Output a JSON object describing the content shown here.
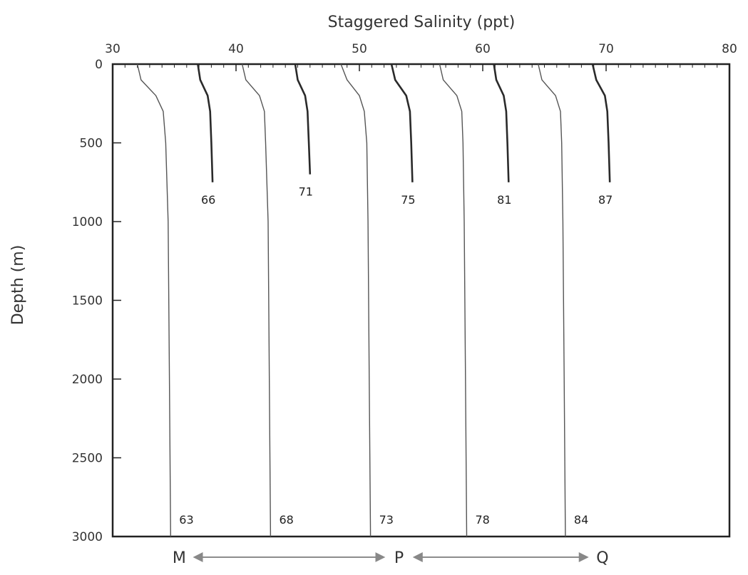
{
  "chart_data": {
    "type": "line",
    "title": "",
    "xlabel": "Staggered Salinity (ppt)",
    "ylabel": "Depth (m)",
    "xlim": [
      30,
      80
    ],
    "ylim": [
      0,
      3000
    ],
    "x_axis_position": "top",
    "y_inverted": true,
    "grid": false,
    "x_ticks": [
      30,
      40,
      50,
      60,
      70,
      80
    ],
    "y_ticks": [
      0,
      500,
      1000,
      1500,
      2000,
      2500,
      3000
    ],
    "colors": {
      "line": "#444444",
      "frame": "#222222",
      "arrow": "#888888"
    },
    "series": [
      {
        "name": "63",
        "style": "thin",
        "points": [
          [
            32.0,
            0
          ],
          [
            32.3,
            100
          ],
          [
            33.5,
            200
          ],
          [
            34.1,
            300
          ],
          [
            34.3,
            500
          ],
          [
            34.5,
            1000
          ],
          [
            34.6,
            2000
          ],
          [
            34.7,
            3000
          ]
        ]
      },
      {
        "name": "68",
        "style": "thin",
        "points": [
          [
            40.5,
            0
          ],
          [
            40.8,
            100
          ],
          [
            41.9,
            200
          ],
          [
            42.3,
            300
          ],
          [
            42.4,
            500
          ],
          [
            42.6,
            1000
          ],
          [
            42.7,
            2000
          ],
          [
            42.8,
            3000
          ]
        ]
      },
      {
        "name": "73",
        "style": "thin",
        "points": [
          [
            48.5,
            0
          ],
          [
            49.0,
            100
          ],
          [
            50.0,
            200
          ],
          [
            50.4,
            300
          ],
          [
            50.6,
            500
          ],
          [
            50.7,
            1000
          ],
          [
            50.8,
            2000
          ],
          [
            50.9,
            3000
          ]
        ]
      },
      {
        "name": "78",
        "style": "thin",
        "points": [
          [
            56.5,
            0
          ],
          [
            56.8,
            100
          ],
          [
            57.9,
            200
          ],
          [
            58.3,
            300
          ],
          [
            58.4,
            500
          ],
          [
            58.5,
            1000
          ],
          [
            58.6,
            2000
          ],
          [
            58.7,
            3000
          ]
        ]
      },
      {
        "name": "84",
        "style": "thin",
        "points": [
          [
            64.5,
            0
          ],
          [
            64.8,
            100
          ],
          [
            65.9,
            200
          ],
          [
            66.3,
            300
          ],
          [
            66.4,
            500
          ],
          [
            66.5,
            1000
          ],
          [
            66.6,
            2000
          ],
          [
            66.7,
            3000
          ]
        ]
      },
      {
        "name": "66",
        "style": "thick",
        "points": [
          [
            36.9,
            0
          ],
          [
            37.1,
            100
          ],
          [
            37.7,
            200
          ],
          [
            37.9,
            300
          ],
          [
            38.0,
            500
          ],
          [
            38.1,
            750
          ]
        ]
      },
      {
        "name": "71",
        "style": "thick",
        "points": [
          [
            44.8,
            0
          ],
          [
            45.0,
            100
          ],
          [
            45.6,
            200
          ],
          [
            45.8,
            300
          ],
          [
            45.9,
            500
          ],
          [
            46.0,
            700
          ]
        ]
      },
      {
        "name": "75",
        "style": "thick",
        "points": [
          [
            52.6,
            0
          ],
          [
            52.9,
            100
          ],
          [
            53.8,
            200
          ],
          [
            54.1,
            300
          ],
          [
            54.2,
            500
          ],
          [
            54.3,
            750
          ]
        ]
      },
      {
        "name": "81",
        "style": "thick",
        "points": [
          [
            60.9,
            0
          ],
          [
            61.1,
            100
          ],
          [
            61.7,
            200
          ],
          [
            61.9,
            300
          ],
          [
            62.0,
            500
          ],
          [
            62.1,
            750
          ]
        ]
      },
      {
        "name": "87",
        "style": "thick",
        "points": [
          [
            68.9,
            0
          ],
          [
            69.2,
            100
          ],
          [
            69.9,
            200
          ],
          [
            70.1,
            300
          ],
          [
            70.2,
            500
          ],
          [
            70.3,
            750
          ]
        ]
      }
    ],
    "bottom_labels": [
      "M",
      "P",
      "Q"
    ],
    "bottom_arrows": [
      [
        "M",
        "P"
      ],
      [
        "P",
        "Q"
      ]
    ]
  }
}
